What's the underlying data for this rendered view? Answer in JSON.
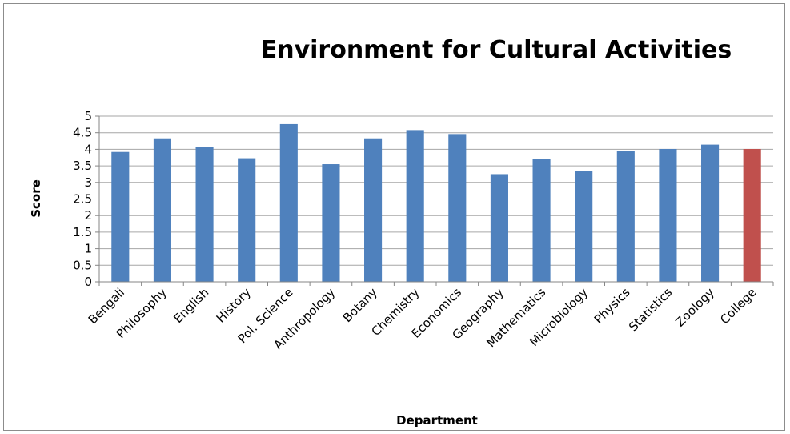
{
  "chart_data": {
    "type": "bar",
    "title": "Environment for Cultural Activities",
    "xlabel": "Department",
    "ylabel": "Score",
    "ylim": [
      0,
      5
    ],
    "yticks": [
      "0",
      "0.5",
      "1",
      "1.5",
      "2",
      "2.5",
      "3",
      "3.5",
      "4",
      "4.5",
      "5"
    ],
    "categories": [
      "Bengali",
      "Philosophy",
      "English",
      "History",
      "Pol. Science",
      "Anthropology",
      "Botany",
      "Chemistry",
      "Economics",
      "Geography",
      "Mathematics",
      "Microbiology",
      "Physics",
      "Statistics",
      "Zoology",
      "College"
    ],
    "values": [
      3.92,
      4.33,
      4.08,
      3.73,
      4.76,
      3.55,
      4.33,
      4.58,
      4.46,
      3.25,
      3.7,
      3.34,
      3.94,
      4.01,
      4.14,
      4.01
    ],
    "colors": {
      "default": "#4f81bd",
      "highlight": "#c0504d",
      "highlight_category": "College"
    },
    "grid": true,
    "legend": "none"
  }
}
